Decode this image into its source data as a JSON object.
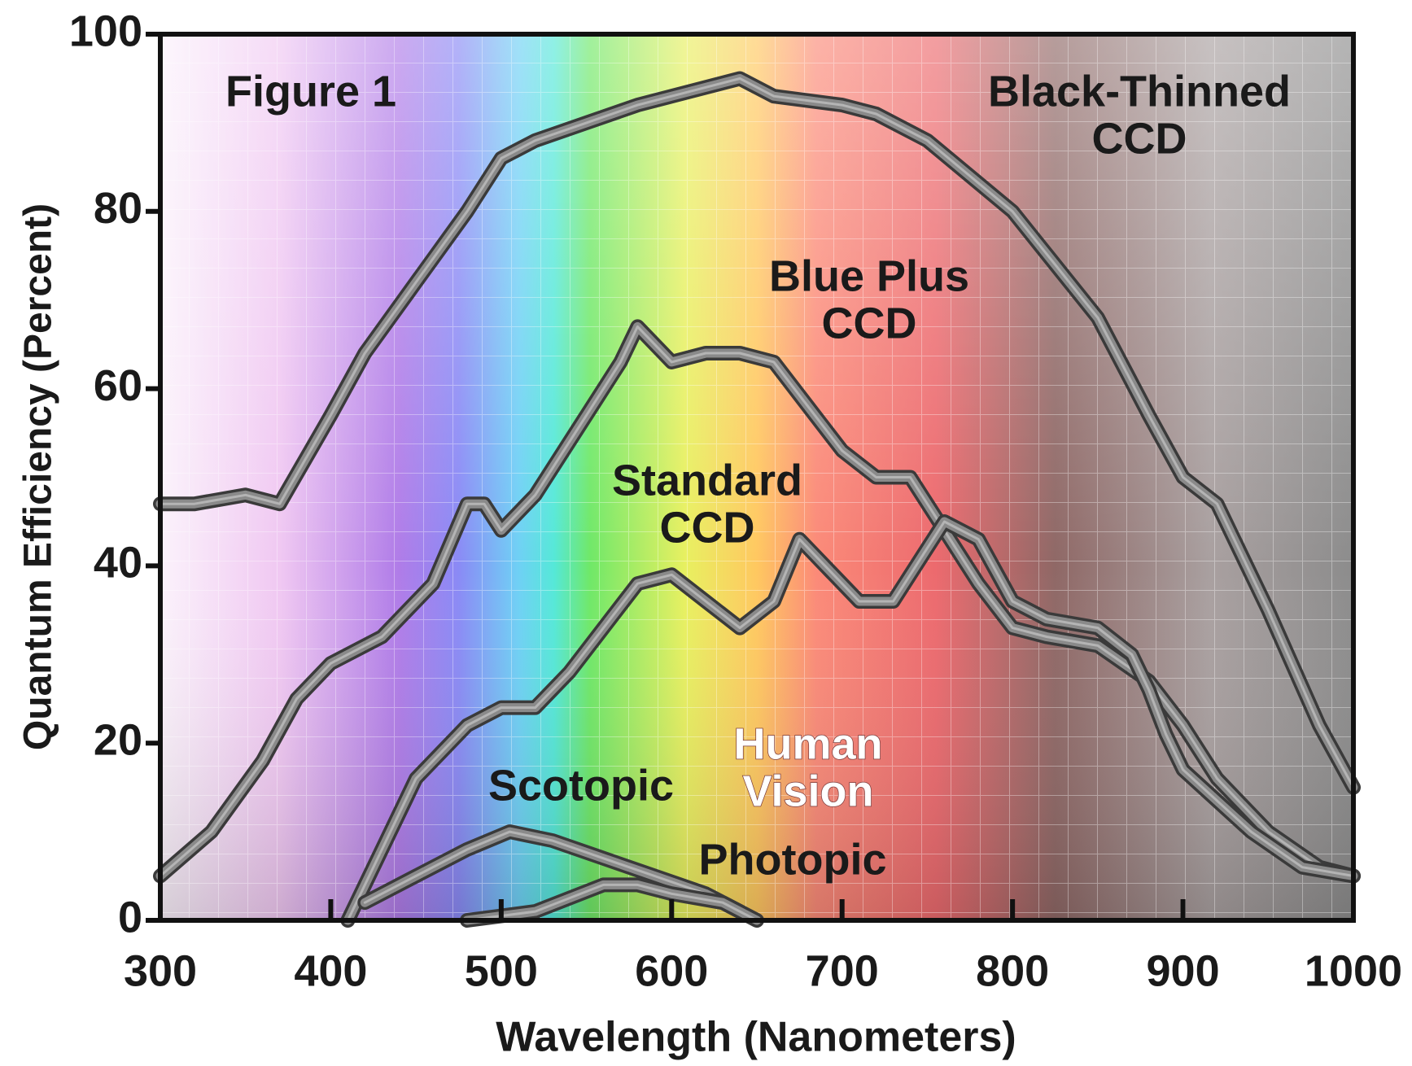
{
  "chart_data": {
    "type": "line",
    "xlabel": "Wavelength (Nanometers)",
    "ylabel": "Quantum Efficiency (Percent)",
    "annotations": [
      "Figure 1"
    ],
    "xlim": [
      300,
      1000
    ],
    "ylim": [
      0,
      100
    ],
    "xticks": [
      300,
      400,
      500,
      600,
      700,
      800,
      900,
      1000
    ],
    "yticks": [
      0,
      20,
      40,
      60,
      80,
      100
    ],
    "series": [
      {
        "label_lines": [
          "Black-Thinned",
          "CCD"
        ],
        "color": "#8a8a8a",
        "x": [
          300,
          320,
          350,
          370,
          400,
          420,
          450,
          480,
          500,
          520,
          550,
          580,
          600,
          640,
          660,
          700,
          720,
          750,
          800,
          850,
          880,
          900,
          920,
          950,
          980,
          1000
        ],
        "values": [
          47,
          47,
          48,
          47,
          57,
          64,
          72,
          80,
          86,
          88,
          90,
          92,
          93,
          95,
          93,
          92,
          91,
          88,
          80,
          68,
          57,
          50,
          47,
          35,
          22,
          15
        ]
      },
      {
        "label_lines": [
          "Blue Plus",
          "CCD"
        ],
        "color": "#8a8a8a",
        "x": [
          300,
          330,
          360,
          380,
          400,
          430,
          460,
          480,
          490,
          500,
          520,
          550,
          570,
          580,
          600,
          620,
          640,
          660,
          680,
          700,
          720,
          740,
          760,
          780,
          800,
          820,
          850,
          880,
          900,
          920,
          950,
          980,
          1000
        ],
        "values": [
          5,
          10,
          18,
          25,
          29,
          32,
          38,
          47,
          47,
          44,
          48,
          57,
          63,
          67,
          63,
          64,
          64,
          63,
          58,
          53,
          50,
          50,
          44,
          38,
          33,
          32,
          31,
          27,
          22,
          16,
          10,
          6,
          5
        ]
      },
      {
        "label_lines": [
          "Standard",
          "CCD"
        ],
        "color": "#8a8a8a",
        "x": [
          410,
          430,
          450,
          480,
          500,
          520,
          540,
          560,
          580,
          600,
          620,
          640,
          660,
          675,
          690,
          710,
          730,
          750,
          760,
          780,
          800,
          820,
          850,
          870,
          880,
          890,
          900,
          940,
          970,
          1000
        ],
        "values": [
          0,
          8,
          16,
          22,
          24,
          24,
          28,
          33,
          38,
          39,
          36,
          33,
          36,
          43,
          40,
          36,
          36,
          42,
          45,
          43,
          36,
          34,
          33,
          30,
          26,
          21,
          17,
          10,
          6,
          5
        ]
      },
      {
        "label_lines": [
          "Scotopic"
        ],
        "color": "#8a8a8a",
        "x": [
          420,
          450,
          480,
          505,
          530,
          560,
          590,
          620,
          640
        ],
        "values": [
          2,
          5,
          8,
          10,
          9,
          7,
          5,
          3,
          1
        ]
      },
      {
        "label_lines": [
          "Photopic"
        ],
        "color": "#8a8a8a",
        "x": [
          480,
          520,
          560,
          580,
          600,
          630,
          650
        ],
        "values": [
          0,
          1,
          4,
          4,
          3,
          2,
          0
        ]
      }
    ],
    "group_label_lines": [
      "Human",
      "Vision"
    ]
  }
}
